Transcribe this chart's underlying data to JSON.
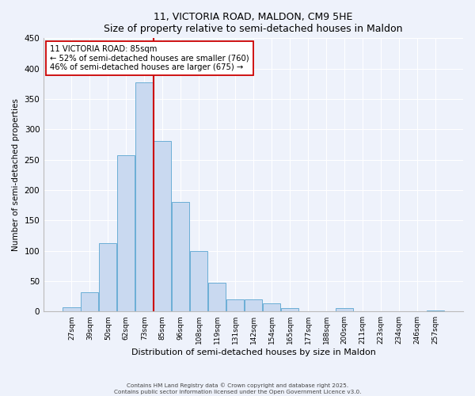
{
  "title": "11, VICTORIA ROAD, MALDON, CM9 5HE",
  "subtitle": "Size of property relative to semi-detached houses in Maldon",
  "xlabel": "Distribution of semi-detached houses by size in Maldon",
  "ylabel": "Number of semi-detached properties",
  "categories": [
    "27sqm",
    "39sqm",
    "50sqm",
    "62sqm",
    "73sqm",
    "85sqm",
    "96sqm",
    "108sqm",
    "119sqm",
    "131sqm",
    "142sqm",
    "154sqm",
    "165sqm",
    "177sqm",
    "188sqm",
    "200sqm",
    "211sqm",
    "223sqm",
    "234sqm",
    "246sqm",
    "257sqm"
  ],
  "values": [
    7,
    32,
    113,
    257,
    378,
    281,
    180,
    100,
    47,
    20,
    20,
    13,
    5,
    0,
    0,
    6,
    0,
    0,
    0,
    0,
    1
  ],
  "bar_color": "#c9d9f0",
  "bar_edge_color": "#6baed6",
  "marker_index": 5,
  "marker_color": "#cc0000",
  "annotation_title": "11 VICTORIA ROAD: 85sqm",
  "annotation_line1": "← 52% of semi-detached houses are smaller (760)",
  "annotation_line2": "46% of semi-detached houses are larger (675) →",
  "annotation_box_color": "#ffffff",
  "annotation_box_edge": "#cc0000",
  "ylim": [
    0,
    450
  ],
  "yticks": [
    0,
    50,
    100,
    150,
    200,
    250,
    300,
    350,
    400,
    450
  ],
  "background_color": "#eef2fb",
  "footer_line1": "Contains HM Land Registry data © Crown copyright and database right 2025.",
  "footer_line2": "Contains public sector information licensed under the Open Government Licence v3.0."
}
